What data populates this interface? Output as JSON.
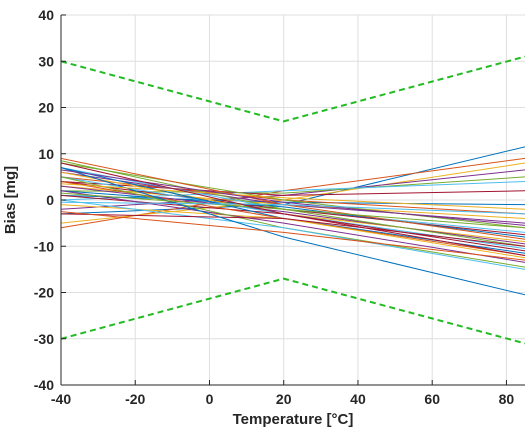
{
  "chart_data": {
    "type": "line",
    "xlabel": "Temperature [°C]",
    "ylabel": "Bias [mg]",
    "xlim": [
      -40,
      85
    ],
    "ylim": [
      -40,
      40
    ],
    "xticks": [
      "-40",
      "-20",
      "0",
      "20",
      "40",
      "60",
      "80"
    ],
    "xtick_values": [
      -40,
      -20,
      0,
      20,
      40,
      60,
      80
    ],
    "yticks": [
      "40",
      "30",
      "20",
      "10",
      "0",
      "-10",
      "-20",
      "-30",
      "-40"
    ],
    "ytick_values": [
      40,
      30,
      20,
      10,
      0,
      -10,
      -20,
      -30,
      -40
    ],
    "grid": true,
    "limits": {
      "upper": {
        "x": [
          -40,
          20,
          85
        ],
        "y": [
          30,
          17,
          31
        ],
        "color": "#22bb22",
        "style": "dashed"
      },
      "lower": {
        "x": [
          -40,
          20,
          85
        ],
        "y": [
          -30,
          -17,
          -31
        ],
        "color": "#22bb22",
        "style": "dashed"
      }
    },
    "series_colors": [
      "#0072BD",
      "#D95319",
      "#EDB120",
      "#7E2F8E",
      "#77AC30",
      "#4DBEEE",
      "#A2142F"
    ],
    "series": [
      {
        "x": [
          -40,
          20,
          85
        ],
        "y": [
          -3,
          -1,
          11.5
        ]
      },
      {
        "x": [
          -40,
          20,
          85
        ],
        "y": [
          -6,
          2,
          9
        ]
      },
      {
        "x": [
          -40,
          20,
          85
        ],
        "y": [
          -5,
          0,
          8
        ]
      },
      {
        "x": [
          -40,
          20,
          85
        ],
        "y": [
          -2,
          1,
          6.5
        ]
      },
      {
        "x": [
          -40,
          20,
          85
        ],
        "y": [
          2,
          1.5,
          5
        ]
      },
      {
        "x": [
          -40,
          20,
          85
        ],
        "y": [
          0,
          2,
          4
        ]
      },
      {
        "x": [
          -40,
          20,
          85
        ],
        "y": [
          4,
          1,
          2
        ]
      },
      {
        "x": [
          -40,
          20,
          85
        ],
        "y": [
          1,
          -0.5,
          -1
        ]
      },
      {
        "x": [
          -40,
          20,
          85
        ],
        "y": [
          5,
          0,
          -3
        ]
      },
      {
        "x": [
          -40,
          20,
          85
        ],
        "y": [
          3,
          -1,
          -4
        ]
      },
      {
        "x": [
          -40,
          20,
          85
        ],
        "y": [
          6,
          -1,
          -5
        ]
      },
      {
        "x": [
          -40,
          20,
          85
        ],
        "y": [
          8,
          0,
          -6
        ]
      },
      {
        "x": [
          -40,
          20,
          85
        ],
        "y": [
          7,
          -2,
          -7
        ]
      },
      {
        "x": [
          -40,
          20,
          85
        ],
        "y": [
          4,
          -2,
          -7.5
        ]
      },
      {
        "x": [
          -40,
          20,
          85
        ],
        "y": [
          2,
          -1.5,
          -8
        ]
      },
      {
        "x": [
          -40,
          20,
          85
        ],
        "y": [
          9,
          -1,
          -8.5
        ]
      },
      {
        "x": [
          -40,
          20,
          85
        ],
        "y": [
          6,
          -3,
          -9
        ]
      },
      {
        "x": [
          -40,
          20,
          85
        ],
        "y": [
          3,
          -2.5,
          -9.5
        ]
      },
      {
        "x": [
          -40,
          20,
          85
        ],
        "y": [
          8.5,
          -2,
          -10
        ]
      },
      {
        "x": [
          -40,
          20,
          85
        ],
        "y": [
          5,
          -3,
          -10.5
        ]
      },
      {
        "x": [
          -40,
          20,
          85
        ],
        "y": [
          1,
          -3,
          -11
        ]
      },
      {
        "x": [
          -40,
          20,
          85
        ],
        "y": [
          7,
          -4,
          -11.5
        ]
      },
      {
        "x": [
          -40,
          20,
          85
        ],
        "y": [
          4,
          -4,
          -12
        ]
      },
      {
        "x": [
          -40,
          20,
          85
        ],
        "y": [
          -1,
          -4,
          -12.5
        ]
      },
      {
        "x": [
          -40,
          20,
          85
        ],
        "y": [
          2,
          -5,
          -13.5
        ]
      },
      {
        "x": [
          -40,
          20,
          85
        ],
        "y": [
          5,
          -6,
          -14.5
        ]
      },
      {
        "x": [
          -40,
          20,
          85
        ],
        "y": [
          0,
          -6,
          -15
        ]
      },
      {
        "x": [
          -40,
          20,
          85
        ],
        "y": [
          -3,
          -4,
          -10
        ]
      },
      {
        "x": [
          -40,
          20,
          85
        ],
        "y": [
          7,
          -8,
          -20.5
        ]
      },
      {
        "x": [
          -40,
          20,
          85
        ],
        "y": [
          -2.5,
          -7,
          -13
        ]
      },
      {
        "x": [
          -40,
          20,
          85
        ],
        "y": [
          3.5,
          0.5,
          -2
        ]
      },
      {
        "x": [
          -40,
          20,
          85
        ],
        "y": [
          6.5,
          -0.5,
          -5.5
        ]
      },
      {
        "x": [
          -40,
          20,
          85
        ],
        "y": [
          1.5,
          -2,
          -6
        ]
      },
      {
        "x": [
          -40,
          20,
          85
        ],
        "y": [
          -0.5,
          -1,
          -3
        ]
      },
      {
        "x": [
          -40,
          20,
          85
        ],
        "y": [
          8,
          -3,
          -12
        ]
      }
    ]
  }
}
